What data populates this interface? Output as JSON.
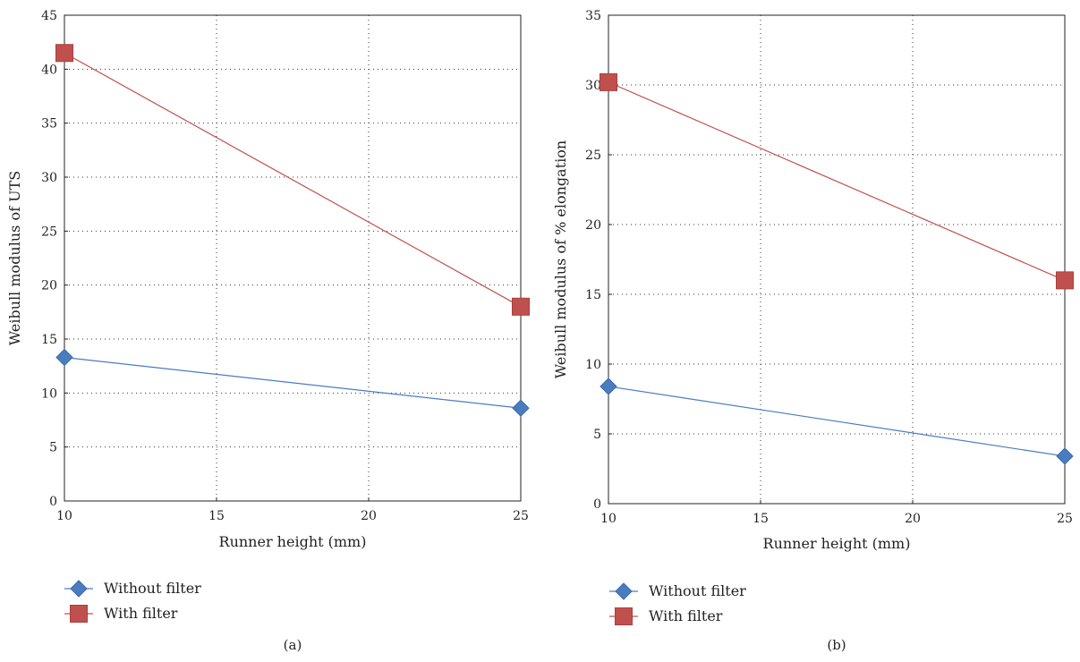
{
  "chart_data": [
    {
      "type": "line",
      "panel_label": "(a)",
      "xlabel": "Runner height (mm)",
      "ylabel": "Weibull modulus of UTS",
      "xlim": [
        10,
        25
      ],
      "ylim": [
        0,
        45
      ],
      "xticks": [
        10,
        15,
        20,
        25
      ],
      "yticks": [
        0,
        5,
        10,
        15,
        20,
        25,
        30,
        35,
        40,
        45
      ],
      "grid": true,
      "legend_position": "bottom-left",
      "series": [
        {
          "name": "Without filter",
          "marker": "diamond",
          "color": "#4a7cc0",
          "x": [
            10,
            25
          ],
          "y": [
            13.3,
            8.6
          ]
        },
        {
          "name": "With filter",
          "marker": "square",
          "color": "#c0504d",
          "x": [
            10,
            25
          ],
          "y": [
            41.5,
            18.0
          ]
        }
      ]
    },
    {
      "type": "line",
      "panel_label": "(b)",
      "xlabel": "Runner height (mm)",
      "ylabel": "Weibull modulus of % elongation",
      "xlim": [
        10,
        25
      ],
      "ylim": [
        0,
        35
      ],
      "xticks": [
        10,
        15,
        20,
        25
      ],
      "yticks": [
        0,
        5,
        10,
        15,
        20,
        25,
        30,
        35
      ],
      "grid": true,
      "legend_position": "bottom-left",
      "series": [
        {
          "name": "Without filter",
          "marker": "diamond",
          "color": "#4a7cc0",
          "x": [
            10,
            25
          ],
          "y": [
            8.4,
            3.4
          ]
        },
        {
          "name": "With filter",
          "marker": "square",
          "color": "#c0504d",
          "x": [
            10,
            25
          ],
          "y": [
            30.2,
            16.0
          ]
        }
      ]
    }
  ]
}
